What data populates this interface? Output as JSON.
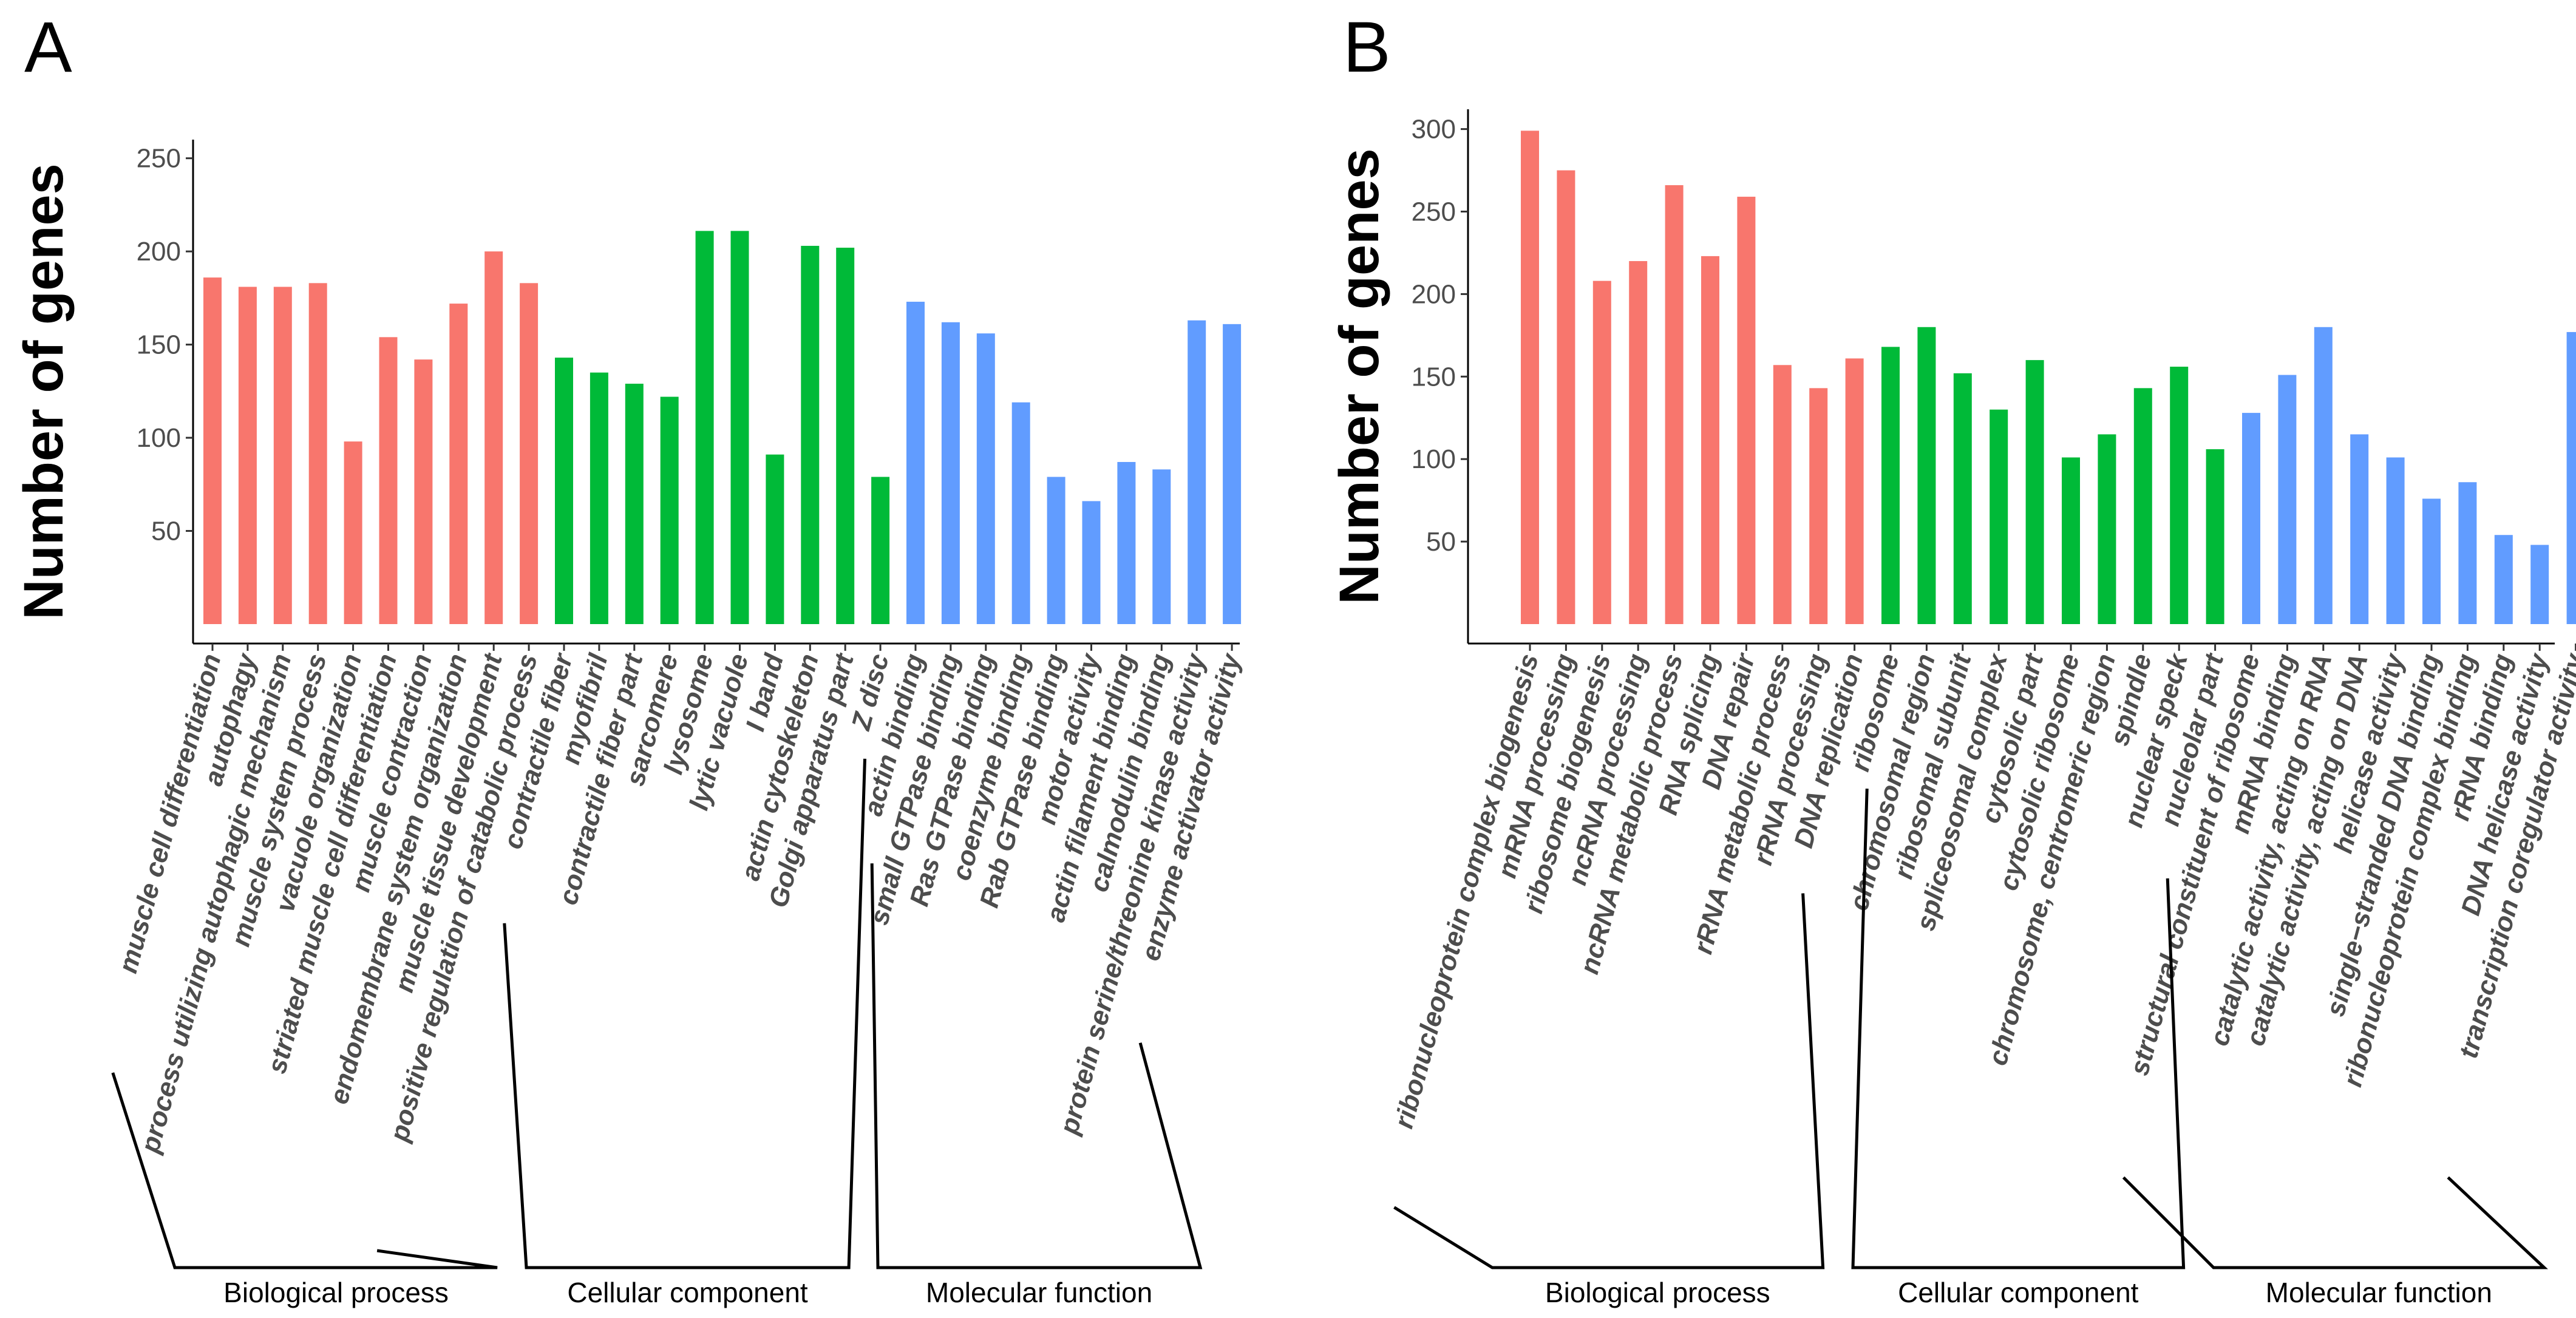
{
  "chart_data": [
    {
      "type": "bar",
      "panel": "A",
      "title": "",
      "xlabel": "",
      "ylabel": "Number of genes",
      "ylim": [
        0,
        260
      ],
      "yticks": [
        50,
        100,
        150,
        200,
        250
      ],
      "categories": [
        "muscle cell differentiation",
        "autophagy",
        "process utilizing autophagic mechanism",
        "muscle system process",
        "vacuole organization",
        "striated muscle cell differentiation",
        "muscle contraction",
        "endomembrane system organization",
        "muscle tissue development",
        "positive regulation of catabolic process",
        "contractile fiber",
        "myofibril",
        "contractile fiber part",
        "sarcomere",
        "lysosome",
        "lytic vacuole",
        "I band",
        "actin cytoskeleton",
        "Golgi apparatus part",
        "Z disc",
        "actin binding",
        "small GTPase binding",
        "Ras GTPase binding",
        "coenzyme binding",
        "Rab GTPase binding",
        "motor activity",
        "actin filament binding",
        "calmodulin binding",
        "protein serine/threonine kinase activity",
        "enzyme activator activity"
      ],
      "values": [
        186,
        181,
        181,
        183,
        98,
        154,
        142,
        172,
        200,
        183,
        143,
        135,
        129,
        122,
        211,
        211,
        91,
        203,
        202,
        79,
        173,
        162,
        156,
        119,
        79,
        66,
        87,
        83,
        163,
        161
      ],
      "groups": [
        {
          "name": "Biological process",
          "start": 0,
          "end": 9,
          "color": "#f8766d"
        },
        {
          "name": "Cellular component",
          "start": 10,
          "end": 19,
          "color": "#00ba38"
        },
        {
          "name": "Molecular function",
          "start": 20,
          "end": 29,
          "color": "#619cff"
        }
      ]
    },
    {
      "type": "bar",
      "panel": "B",
      "title": "",
      "xlabel": "",
      "ylabel": "Number of genes",
      "ylim": [
        0,
        312
      ],
      "yticks": [
        50,
        100,
        150,
        200,
        250,
        300
      ],
      "categories": [
        "ribonucleoprotein complex biogenesis",
        "mRNA processing",
        "ribosome biogenesis",
        "ncRNA processing",
        "ncRNA metabolic process",
        "RNA splicing",
        "DNA repair",
        "rRNA metabolic process",
        "rRNA processing",
        "DNA replication",
        "ribosome",
        "chromosomal region",
        "ribosomal subunit",
        "spliceosomal complex",
        "cytosolic part",
        "cytosolic ribosome",
        "chromosome, centromeric region",
        "spindle",
        "nuclear speck",
        "nucleolar part",
        "structural constituent of ribosome",
        "mRNA binding",
        "catalytic activity, acting on RNA",
        "catalytic activity, acting on DNA",
        "helicase activity",
        "single−stranded DNA binding",
        "ribonucleoprotein complex binding",
        "rRNA binding",
        "DNA helicase activity",
        "transcription coregulator activity"
      ],
      "values": [
        299,
        275,
        208,
        220,
        266,
        223,
        259,
        157,
        143,
        161,
        168,
        180,
        152,
        130,
        160,
        101,
        115,
        143,
        156,
        106,
        128,
        151,
        180,
        115,
        101,
        76,
        86,
        54,
        48,
        177
      ],
      "groups": [
        {
          "name": "Biological process",
          "start": 0,
          "end": 9,
          "color": "#f8766d"
        },
        {
          "name": "Cellular component",
          "start": 10,
          "end": 19,
          "color": "#00ba38"
        },
        {
          "name": "Molecular function",
          "start": 20,
          "end": 29,
          "color": "#619cff"
        }
      ]
    }
  ]
}
